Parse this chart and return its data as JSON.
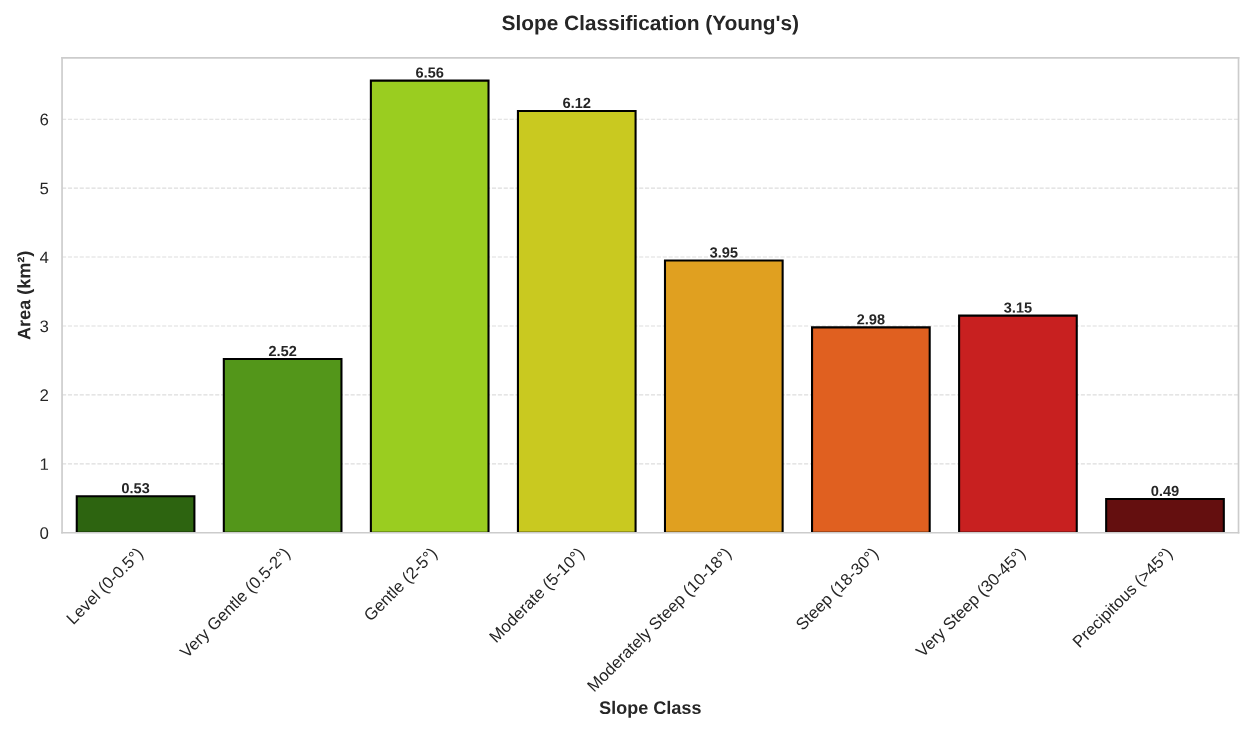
{
  "chart_data": {
    "type": "bar",
    "title": "Slope Classification (Young's)",
    "xlabel": "Slope Class",
    "ylabel": "Area (km²)",
    "categories": [
      "Level (0-0.5°)",
      "Very Gentle (0.5-2°)",
      "Gentle (2-5°)",
      "Moderate (5-10°)",
      "Moderately Steep (10-18°)",
      "Steep (18-30°)",
      "Very Steep (30-45°)",
      "Precipitous (>45°)"
    ],
    "values": [
      0.53,
      2.52,
      6.56,
      6.12,
      3.95,
      2.98,
      3.15,
      0.49
    ],
    "colors": [
      "#2d6410",
      "#53961a",
      "#9acd20",
      "#c9c920",
      "#e0a020",
      "#e06020",
      "#c82020",
      "#640f0f"
    ],
    "ylim": [
      0,
      6.89
    ],
    "yticks": [
      0,
      1,
      2,
      3,
      4,
      5,
      6
    ],
    "grid": "y",
    "data_labels": true
  }
}
